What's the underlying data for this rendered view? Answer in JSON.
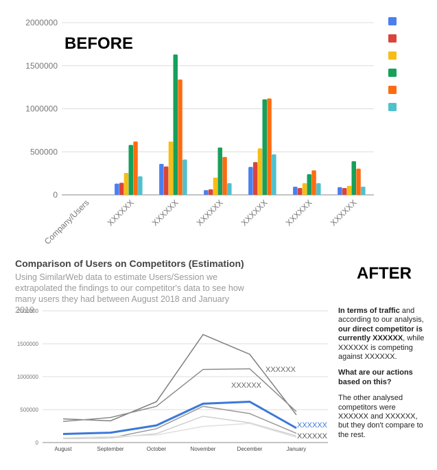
{
  "labels": {
    "before": "BEFORE",
    "after": "AFTER"
  },
  "colors": {
    "series": [
      "#4a7ff0",
      "#d9453b",
      "#f5be16",
      "#16a05a",
      "#fd6c10",
      "#4fc1cc"
    ],
    "grid": "#dcdcdc",
    "axis_text": "#777777",
    "highlight_line": "#3b78d8",
    "gray_lines": [
      "#7f7f7f",
      "#8c8c8c",
      "#9a9a9a",
      "#cfcfcf",
      "#e0e0e0"
    ]
  },
  "chart_data": [
    {
      "type": "bar",
      "title": "",
      "categories": [
        "Company/Users",
        "XXXXXX",
        "XXXXXX",
        "XXXXXX",
        "XXXXXX",
        "XXXXXX",
        "XXXXXX"
      ],
      "series": [
        {
          "name": "",
          "values": [
            0,
            130000,
            360000,
            55000,
            325000,
            95000,
            90000
          ]
        },
        {
          "name": "",
          "values": [
            0,
            140000,
            330000,
            65000,
            380000,
            80000,
            80000
          ]
        },
        {
          "name": "",
          "values": [
            0,
            255000,
            620000,
            200000,
            540000,
            135000,
            105000
          ]
        },
        {
          "name": "",
          "values": [
            0,
            580000,
            1630000,
            550000,
            1110000,
            240000,
            390000
          ]
        },
        {
          "name": "",
          "values": [
            0,
            620000,
            1340000,
            440000,
            1120000,
            285000,
            305000
          ]
        },
        {
          "name": "",
          "values": [
            0,
            215000,
            410000,
            135000,
            470000,
            135000,
            95000
          ]
        }
      ],
      "yticks": [
        "0",
        "500000",
        "1000000",
        "1500000",
        "2000000"
      ],
      "ylim": [
        0,
        2000000
      ],
      "xlabel": "",
      "ylabel": "",
      "legend": "right (colour swatches only, no text)"
    },
    {
      "type": "line",
      "title": "Comparison of Users on Competitors (Estimation)",
      "subtitle": "Using SimilarWeb data to estimate Users/Session we extrapolated the findings to our competitor's data to see how many users they had between August 2018 and January 2019",
      "categories": [
        "August",
        "September",
        "October",
        "November",
        "December",
        "January"
      ],
      "series": [
        {
          "name": "",
          "highlight": false,
          "values": [
            360000,
            330000,
            620000,
            1640000,
            1340000,
            420000
          ]
        },
        {
          "name": "XXXXXX",
          "highlight": false,
          "values": [
            320000,
            380000,
            550000,
            1110000,
            1120000,
            470000
          ]
        },
        {
          "name": "",
          "highlight": false,
          "values": [
            60000,
            70000,
            210000,
            550000,
            440000,
            140000
          ]
        },
        {
          "name": "",
          "highlight": false,
          "values": [
            60000,
            70000,
            135000,
            400000,
            300000,
            100000
          ]
        },
        {
          "name": "",
          "highlight": false,
          "values": [
            70000,
            90000,
            115000,
            245000,
            290000,
            80000
          ]
        },
        {
          "name": "XXXXXX",
          "highlight": true,
          "values": [
            130000,
            150000,
            260000,
            590000,
            620000,
            220000
          ]
        }
      ],
      "annotations": [
        "XXXXXX",
        "XXXXXX"
      ],
      "end_labels": [
        "XXXXXX",
        "XXXXXX"
      ],
      "yticks": [
        "0",
        "500000",
        "1000000",
        "1500000",
        "2000000"
      ],
      "ylim": [
        0,
        2000000
      ],
      "xlabel": "",
      "ylabel": ""
    }
  ],
  "notes": {
    "p1_bold_a": "In terms of traffic",
    "p1_text_a": " and according to our analysis, ",
    "p1_bold_b": "our direct competitor is currently XXXXXX",
    "p1_text_b": ", while XXXXXX is competing against XXXXXX.",
    "p2_heading": "What are our actions based on this?",
    "p3_text": "The other analysed competitors were XXXXXX and XXXXXX, but they don't compare to the rest."
  }
}
